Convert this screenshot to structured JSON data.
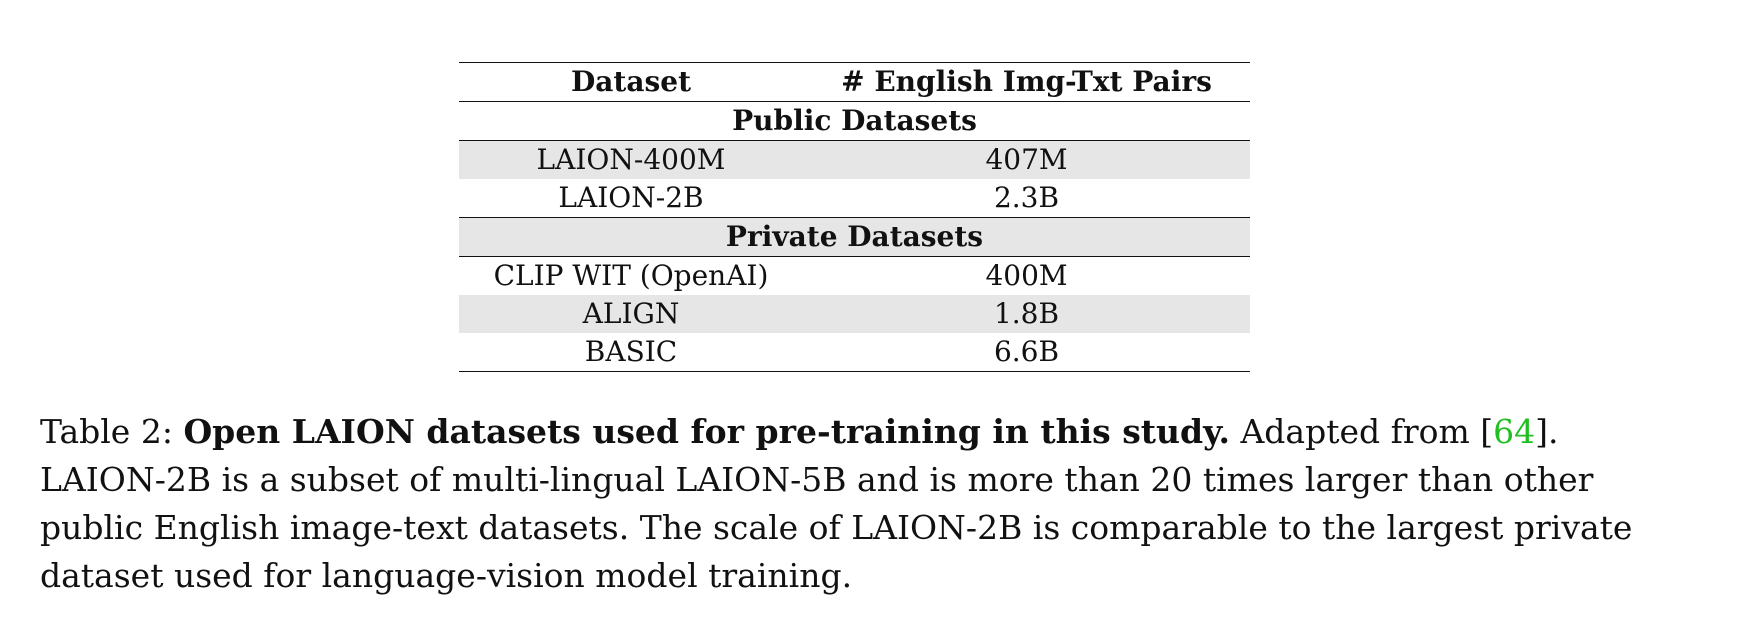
{
  "table": {
    "headers": [
      "Dataset",
      "# English Img-Txt Pairs"
    ],
    "sections": [
      {
        "title": "Public Datasets",
        "rows": [
          {
            "dataset": "LAION-400M",
            "pairs": "407M",
            "shaded": true
          },
          {
            "dataset": "LAION-2B",
            "pairs": "2.3B",
            "shaded": false
          }
        ]
      },
      {
        "title": "Private Datasets",
        "rows": [
          {
            "dataset": "CLIP WIT (OpenAI)",
            "pairs": "400M",
            "shaded": false
          },
          {
            "dataset": "ALIGN",
            "pairs": "1.8B",
            "shaded": true
          },
          {
            "dataset": "BASIC",
            "pairs": "6.6B",
            "shaded": false
          }
        ]
      }
    ]
  },
  "caption": {
    "label": "Table 2:",
    "title": "Open LAION datasets used for pre-training in this study.",
    "adapted_prefix": "Adapted from [",
    "citation": "64",
    "adapted_suffix": "].",
    "body": "LAION-2B is a subset of multi-lingual LAION-5B and is more than 20 times larger than other public English image-text datasets. The scale of LAION-2B is comparable to the largest private dataset used for language-vision model training."
  },
  "colors": {
    "row_shade": "#e6e6e6",
    "citation": "#1fbf1f"
  }
}
